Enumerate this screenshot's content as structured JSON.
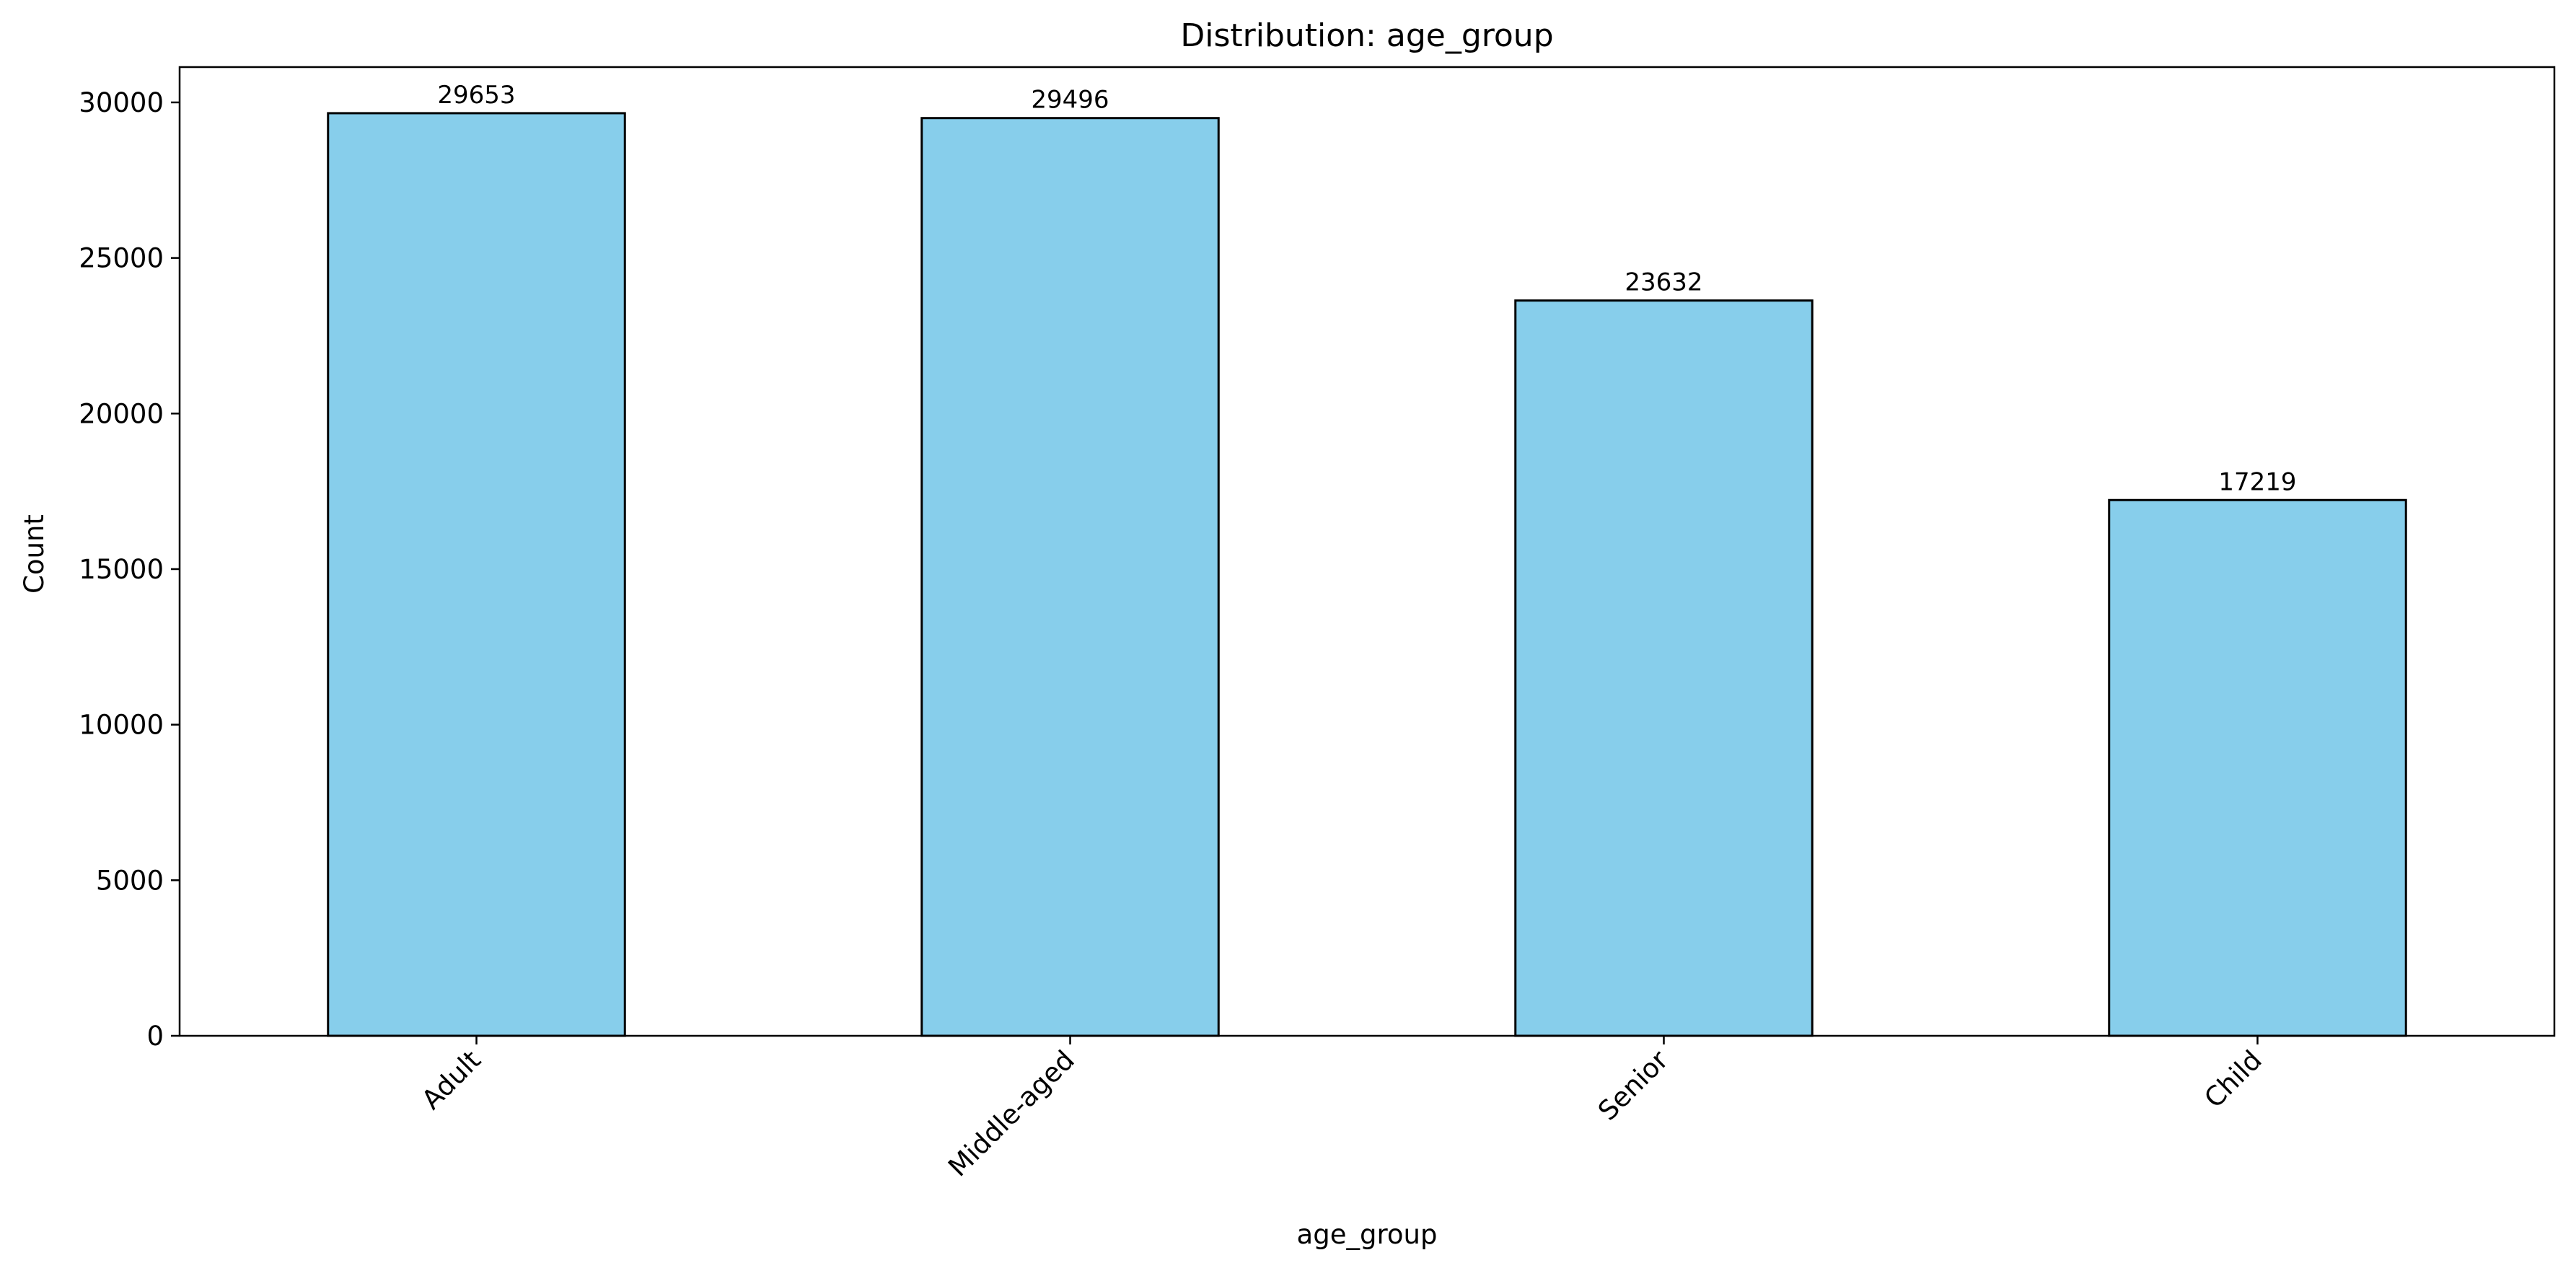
{
  "chart_data": {
    "type": "bar",
    "title": "Distribution: age_group",
    "xlabel": "age_group",
    "ylabel": "Count",
    "categories": [
      "Adult",
      "Middle-aged",
      "Senior",
      "Child"
    ],
    "values": [
      29653,
      29496,
      23632,
      17219
    ],
    "data_labels": [
      "29653",
      "29496",
      "23632",
      "17219"
    ],
    "ylim": [
      0,
      31135
    ],
    "yticks": [
      0,
      5000,
      10000,
      15000,
      20000,
      25000,
      30000
    ],
    "ytick_labels": [
      "0",
      "5000",
      "10000",
      "15000",
      "20000",
      "25000",
      "30000"
    ],
    "grid": false,
    "legend": "none",
    "bar_color": "#87ceeb",
    "bar_edge_color": "#000000"
  }
}
